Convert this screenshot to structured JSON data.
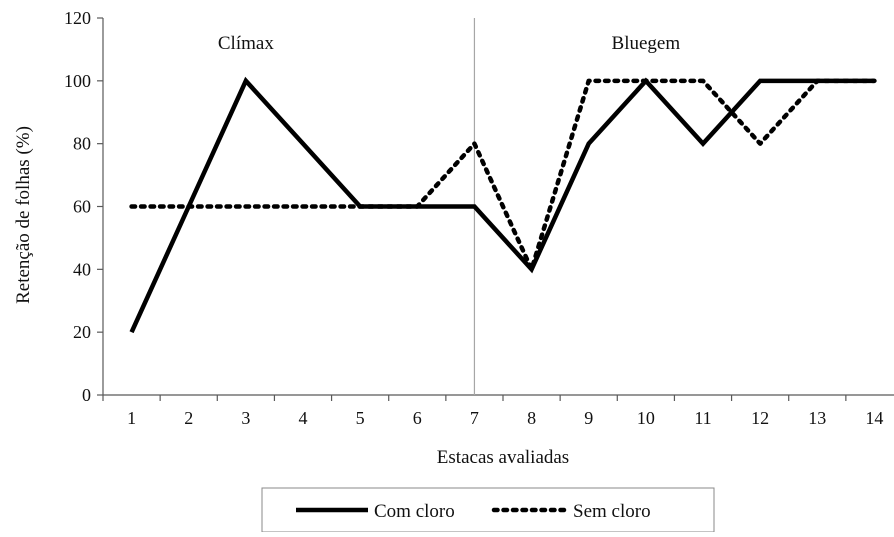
{
  "chart_data": {
    "type": "line",
    "title": "",
    "xlabel": "Estacas avaliadas",
    "ylabel": "Retenção de folhas (%)",
    "x": [
      1,
      2,
      3,
      4,
      5,
      6,
      7,
      8,
      9,
      10,
      11,
      12,
      13,
      14
    ],
    "x_tick_labels": [
      "1",
      "2",
      "3",
      "4",
      "5",
      "6",
      "7",
      "8",
      "9",
      "10",
      "11",
      "12",
      "13",
      "14"
    ],
    "xlim": [
      0.5,
      14.5
    ],
    "ylim": [
      0,
      120
    ],
    "y_ticks": [
      0,
      20,
      40,
      60,
      80,
      100,
      120
    ],
    "y_tick_labels": [
      "0",
      "20",
      "40",
      "60",
      "80",
      "100",
      "120"
    ],
    "grid": false,
    "legend_position": "bottom",
    "series": [
      {
        "name": "Com cloro",
        "style": "solid",
        "color": "#000000",
        "values": [
          20,
          60,
          100,
          80,
          60,
          60,
          60,
          40,
          80,
          100,
          80,
          100,
          100,
          100
        ]
      },
      {
        "name": "Sem cloro",
        "style": "dotted",
        "color": "#000000",
        "values": [
          60,
          60,
          60,
          60,
          60,
          60,
          80,
          40,
          100,
          100,
          100,
          80,
          100,
          100
        ]
      }
    ],
    "divider_at_x": 7,
    "annotations": [
      {
        "text": "Clímax",
        "x": 3,
        "y": 112
      },
      {
        "text": "Bluegem",
        "x": 10,
        "y": 112
      }
    ]
  }
}
